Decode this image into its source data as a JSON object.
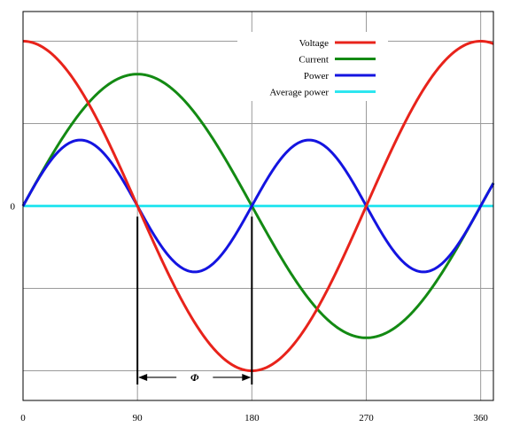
{
  "chart_data": {
    "type": "line",
    "title": "",
    "xlabel": "",
    "ylabel": "",
    "xlim": [
      0,
      370
    ],
    "ylim": [
      -1.18,
      1.18
    ],
    "x_ticks": [
      0,
      90,
      180,
      270,
      360
    ],
    "x_tick_labels": [
      "0",
      "90",
      "180",
      "270",
      "360"
    ],
    "y_gridlines": [
      -1,
      -0.5,
      0,
      0.5,
      1
    ],
    "y_tick_labels": [
      {
        "value": 0,
        "label": "0"
      }
    ],
    "grid": true,
    "legend_position": "top-right",
    "series": [
      {
        "name": "Voltage",
        "color": "#e8231b",
        "function": "cos",
        "amplitude": 1.0,
        "phase_deg": 0,
        "x": [
          0,
          45,
          90,
          135,
          180,
          225,
          270,
          315,
          360
        ],
        "y": [
          1.0,
          0.707,
          0.0,
          -0.707,
          -1.0,
          -0.707,
          0.0,
          0.707,
          1.0
        ]
      },
      {
        "name": "Current",
        "color": "#138a13",
        "function": "sin",
        "amplitude": 0.8,
        "phase_deg": 0,
        "x": [
          0,
          45,
          90,
          135,
          180,
          225,
          270,
          315,
          360
        ],
        "y": [
          0.0,
          0.566,
          0.8,
          0.566,
          0.0,
          -0.566,
          -0.8,
          -0.566,
          0.0
        ]
      },
      {
        "name": "Power",
        "color": "#1414e0",
        "function": "product",
        "amplitude": 0.4,
        "phase_deg": 0,
        "x": [
          0,
          45,
          90,
          135,
          180,
          225,
          270,
          315,
          360
        ],
        "y": [
          0.0,
          0.4,
          0.0,
          -0.4,
          0.0,
          0.4,
          0.0,
          -0.4,
          0.0
        ]
      },
      {
        "name": "Average power",
        "color": "#2ee6f0",
        "function": "const",
        "amplitude": 0,
        "phase_deg": 0,
        "x": [
          0,
          360
        ],
        "y": [
          0,
          0
        ]
      }
    ],
    "annotations": [
      {
        "text": "Φ",
        "type": "double-arrow",
        "from_x": 90,
        "to_x": 180,
        "y": -1.04
      }
    ]
  }
}
